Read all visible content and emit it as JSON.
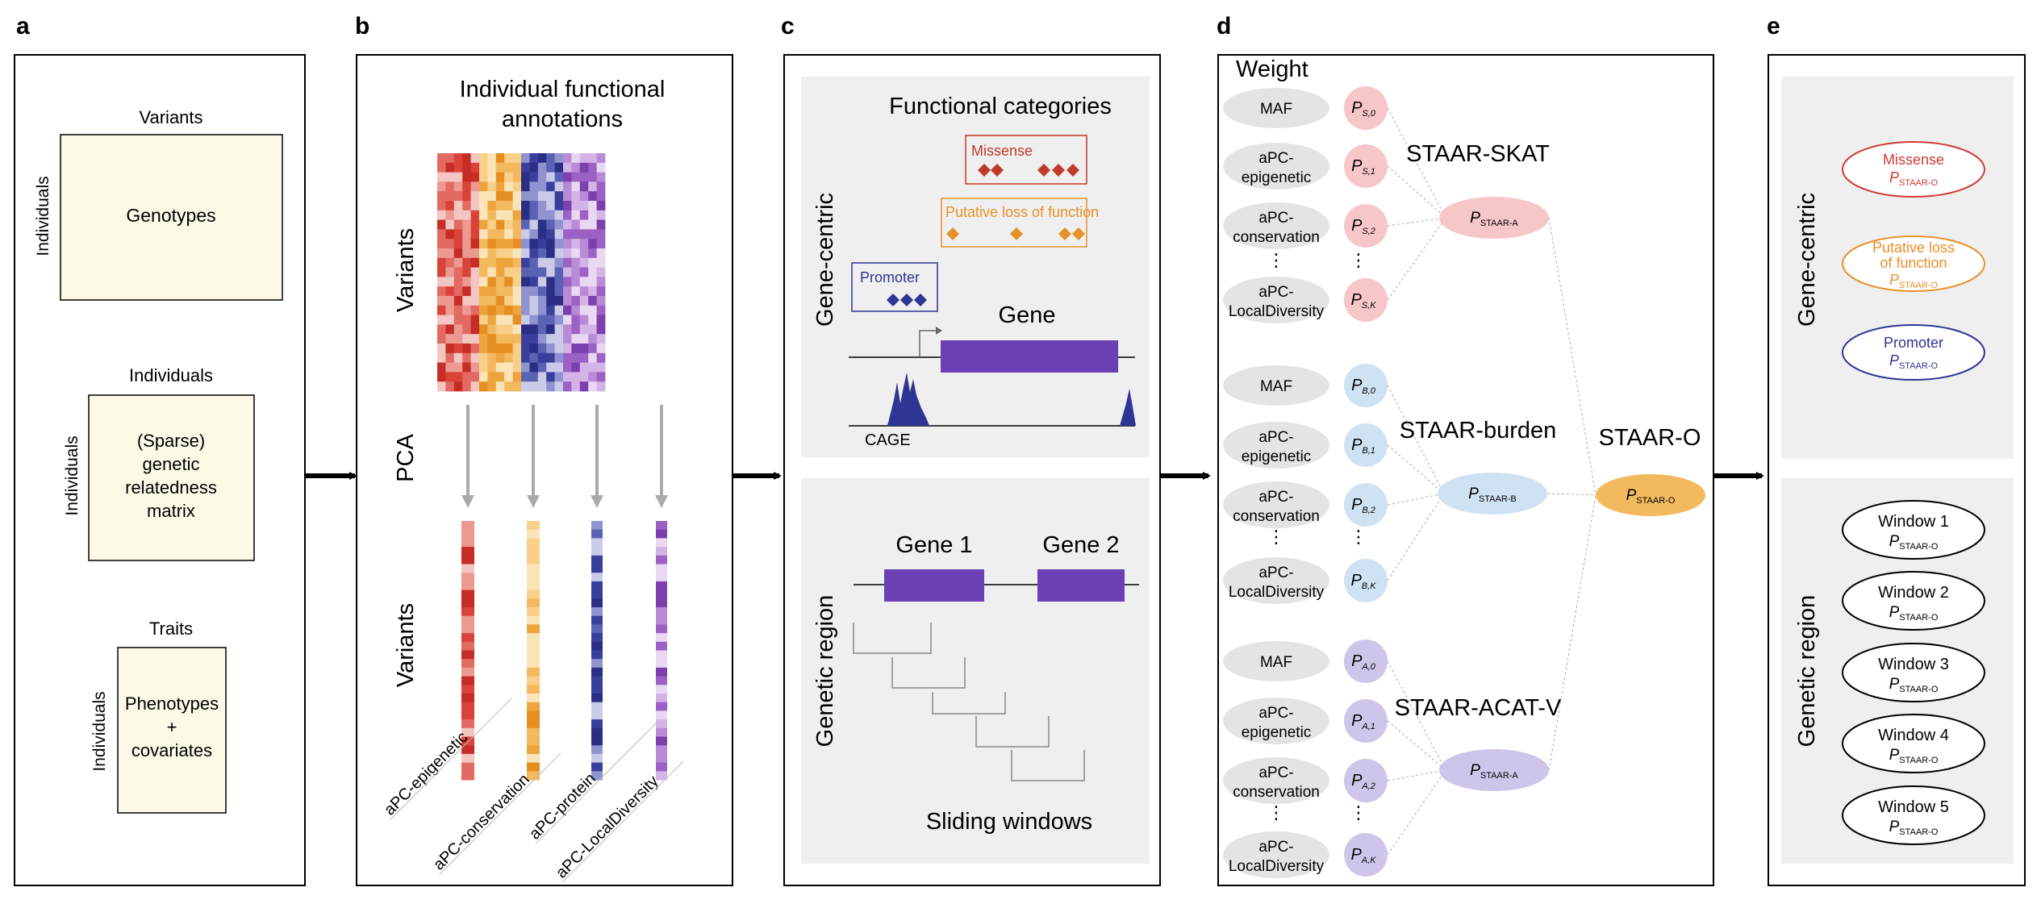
{
  "panels": {
    "a": {
      "letter": "a",
      "blocks": [
        {
          "top": "Variants",
          "side": "Individuals",
          "lines": [
            "Genotypes"
          ]
        },
        {
          "top": "Individuals",
          "side": "Individuals",
          "lines": [
            "(Sparse)",
            "genetic",
            "relatedness",
            "matrix"
          ]
        },
        {
          "top": "Traits",
          "side": "Individuals",
          "lines": [
            "Phenotypes",
            "+",
            "covariates"
          ]
        }
      ]
    },
    "b": {
      "letter": "b",
      "title_lines": [
        "Individual functional",
        "annotations"
      ],
      "variants_label": "Variants",
      "pca_label": "PCA",
      "variants_label_2": "Variants",
      "apc_labels": [
        "aPC-epigenetic",
        "aPC-conservation",
        "aPC-protein",
        "aPC-LocalDiversity"
      ]
    },
    "c": {
      "letter": "c",
      "gene_centric": {
        "side_label": "Gene-centric",
        "title": "Functional categories",
        "missense": "Missense",
        "plof": "Putative loss of function",
        "promoter": "Promoter",
        "gene": "Gene",
        "cage": "CAGE"
      },
      "genetic_region": {
        "side_label": "Genetic region",
        "gene1": "Gene 1",
        "gene2": "Gene 2",
        "sliding": "Sliding windows"
      }
    },
    "d": {
      "letter": "d",
      "weight_label": "Weight",
      "groups": [
        {
          "test": "STAAR-SKAT",
          "p_main": "P",
          "p_sub": "STAAR-A",
          "sym": "S",
          "rows": [
            {
              "label_lines": [
                "MAF"
              ],
              "p": "P",
              "sub": "S,0"
            },
            {
              "label_lines": [
                "aPC-",
                "epigenetic"
              ],
              "p": "P",
              "sub": "S,1"
            },
            {
              "label_lines": [
                "aPC-",
                "conservation"
              ],
              "p": "P",
              "sub": "S,2"
            },
            {
              "label_lines": [
                "aPC-",
                "LocalDiversity"
              ],
              "p": "P",
              "sub": "S,K"
            }
          ]
        },
        {
          "test": "STAAR-burden",
          "p_main": "P",
          "p_sub": "STAAR-B",
          "sym": "B",
          "rows": [
            {
              "label_lines": [
                "MAF"
              ],
              "p": "P",
              "sub": "B,0"
            },
            {
              "label_lines": [
                "aPC-",
                "epigenetic"
              ],
              "p": "P",
              "sub": "B,1"
            },
            {
              "label_lines": [
                "aPC-",
                "conservation"
              ],
              "p": "P",
              "sub": "B,2"
            },
            {
              "label_lines": [
                "aPC-",
                "LocalDiversity"
              ],
              "p": "P",
              "sub": "B,K"
            }
          ]
        },
        {
          "test": "STAAR-ACAT-V",
          "p_main": "P",
          "p_sub": "STAAR-A",
          "sym": "A",
          "rows": [
            {
              "label_lines": [
                "MAF"
              ],
              "p": "P",
              "sub": "A,0"
            },
            {
              "label_lines": [
                "aPC-",
                "epigenetic"
              ],
              "p": "P",
              "sub": "A,1"
            },
            {
              "label_lines": [
                "aPC-",
                "conservation"
              ],
              "p": "P",
              "sub": "A,2"
            },
            {
              "label_lines": [
                "aPC-",
                "LocalDiversity"
              ],
              "p": "P",
              "sub": "A,K"
            }
          ]
        }
      ],
      "dots": "⋮",
      "staar_o": "STAAR-O",
      "staar_o_p": "P",
      "staar_o_sub": "STAAR-O"
    },
    "e": {
      "letter": "e",
      "gene_centric_label": "Gene-centric",
      "genetic_region_label": "Genetic region",
      "gene_ellipses": [
        {
          "lines": [
            "Missense"
          ],
          "p": "P",
          "sub": "STAAR-O"
        },
        {
          "lines": [
            "Putative loss",
            "of function"
          ],
          "p": "P",
          "sub": "STAAR-O"
        },
        {
          "lines": [
            "Promoter"
          ],
          "p": "P",
          "sub": "STAAR-O"
        }
      ],
      "windows": [
        {
          "label": "Window 1",
          "p": "P",
          "sub": "STAAR-O"
        },
        {
          "label": "Window 2",
          "p": "P",
          "sub": "STAAR-O"
        },
        {
          "label": "Window 3",
          "p": "P",
          "sub": "STAAR-O"
        },
        {
          "label": "Window 4",
          "p": "P",
          "sub": "STAAR-O"
        },
        {
          "label": "Window 5",
          "p": "P",
          "sub": "STAAR-O"
        }
      ]
    }
  },
  "colors": {
    "red": "#cf3b35",
    "orange": "#e8902a",
    "blue": "#2e3592",
    "purple": "#6c40b5",
    "pink_fill": "#f7c6c9",
    "lightblue_fill": "#cfe2f3",
    "lavender_fill": "#cfc5ea",
    "gray_fill": "#e4e4e4",
    "panel_bg": "#efefef",
    "cream": "#fcfae6",
    "staar_o_fill": "#f3b95f"
  }
}
